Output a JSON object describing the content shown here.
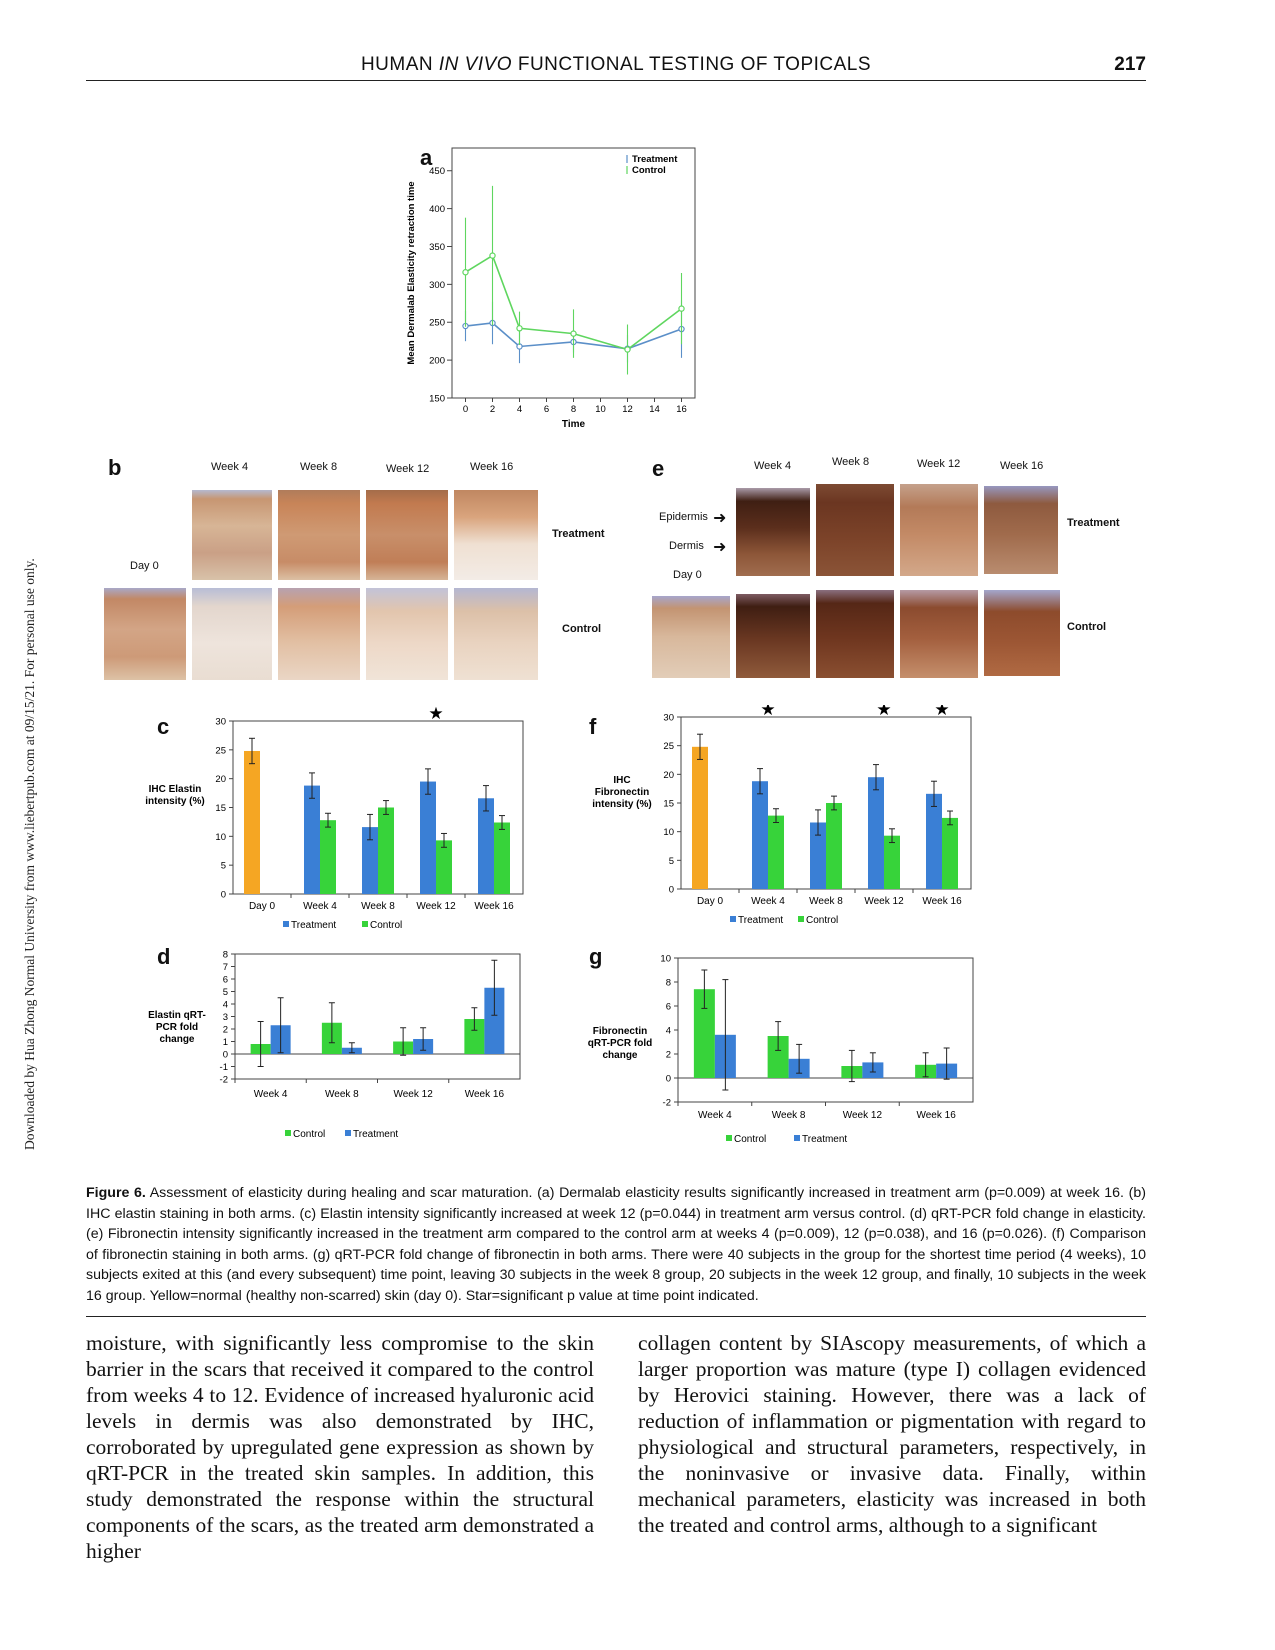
{
  "header": {
    "title": "HUMAN IN VIVO FUNCTIONAL TESTING OF TOPICALS",
    "title_pre": "HUMAN ",
    "title_em": "IN VIVO",
    "title_post": " FUNCTIONAL TESTING OF TOPICALS",
    "page_number": "217"
  },
  "side_note": "Downloaded by Hua Zhong Normal University from www.liebertpub.com at 09/15/21. For personal use only.",
  "colors": {
    "treatment": "#3a7fd5",
    "control": "#37d33a",
    "day0": "#f5a623",
    "line_treatment": "#5b8fc8",
    "line_control": "#5fd65f"
  },
  "panel_a": {
    "letter": "a",
    "ylabel": "Mean Dermalab Elasticity retraction time",
    "xlabel": "Time",
    "legend": [
      "Treatment",
      "Control"
    ]
  },
  "panel_b": {
    "letter": "b",
    "columns": [
      "Week 4",
      "Week 8",
      "Week 12",
      "Week 16"
    ],
    "day0": "Day 0",
    "rows": [
      "Treatment",
      "Control"
    ]
  },
  "panel_e": {
    "letter": "e",
    "columns": [
      "Week 4",
      "Week 8",
      "Week 12",
      "Week 16"
    ],
    "day0": "Day 0",
    "rows": [
      "Treatment",
      "Control"
    ],
    "layer_labels": [
      "Epidermis",
      "Dermis"
    ]
  },
  "panel_c": {
    "letter": "c",
    "ylabel_lines": [
      "IHC Elastin",
      "intensity (%)"
    ],
    "legend": [
      "Treatment",
      "Control"
    ]
  },
  "panel_f": {
    "letter": "f",
    "ylabel_lines": [
      "IHC",
      "Fibronectin",
      "intensity (%)"
    ],
    "legend": [
      "Treatment",
      "Control"
    ]
  },
  "panel_d": {
    "letter": "d",
    "ylabel_lines": [
      "Elastin qRT-",
      "PCR fold",
      "change"
    ],
    "legend": [
      "Control",
      "Treatment"
    ]
  },
  "panel_g": {
    "letter": "g",
    "ylabel_lines": [
      "Fibronectin",
      "qRT-PCR fold",
      "change"
    ],
    "legend": [
      "Control",
      "Treatment"
    ]
  },
  "chart_data": [
    {
      "id": "a",
      "type": "line",
      "title": "",
      "xlabel": "Time",
      "ylabel": "Mean Dermalab Elasticity retraction time",
      "x": [
        0,
        2,
        4,
        8,
        12,
        16
      ],
      "xticks": [
        0,
        2,
        4,
        6,
        8,
        10,
        12,
        14,
        16
      ],
      "yticks": [
        150,
        200,
        250,
        300,
        350,
        400,
        450
      ],
      "xlim": [
        -1,
        17
      ],
      "ylim": [
        150,
        480
      ],
      "legend_position": "top-right",
      "series": [
        {
          "name": "Treatment",
          "values": [
            245,
            249,
            218,
            224,
            215,
            241
          ],
          "error": [
            20,
            28,
            22,
            14,
            18,
            38
          ]
        },
        {
          "name": "Control",
          "values": [
            316,
            338,
            242,
            235,
            214,
            268
          ],
          "error": [
            72,
            92,
            22,
            32,
            33,
            47
          ]
        }
      ]
    },
    {
      "id": "c",
      "type": "bar",
      "categories": [
        "Day 0",
        "Week 4",
        "Week 8",
        "Week 12",
        "Week 16"
      ],
      "ylabel": "IHC Elastin intensity (%)",
      "ylim": [
        0,
        30
      ],
      "yticks": [
        0,
        5,
        10,
        15,
        20,
        25,
        30
      ],
      "day0": {
        "value": 24.8,
        "error": 2.2
      },
      "series": [
        {
          "name": "Treatment",
          "values": [
            null,
            18.8,
            11.6,
            19.5,
            16.6
          ],
          "error": [
            null,
            2.2,
            2.2,
            2.2,
            2.2
          ]
        },
        {
          "name": "Control",
          "values": [
            null,
            12.8,
            15.0,
            9.3,
            12.4
          ],
          "error": [
            null,
            1.2,
            1.2,
            1.2,
            1.2
          ]
        }
      ],
      "significant": [
        "Week 12"
      ]
    },
    {
      "id": "f",
      "type": "bar",
      "categories": [
        "Day 0",
        "Week 4",
        "Week 8",
        "Week 12",
        "Week 16"
      ],
      "ylabel": "IHC Fibronectin intensity (%)",
      "ylim": [
        0,
        30
      ],
      "yticks": [
        0,
        5,
        10,
        15,
        20,
        25,
        30
      ],
      "day0": {
        "value": 24.8,
        "error": 2.2
      },
      "series": [
        {
          "name": "Treatment",
          "values": [
            null,
            18.8,
            11.6,
            19.5,
            16.6
          ],
          "error": [
            null,
            2.2,
            2.2,
            2.2,
            2.2
          ]
        },
        {
          "name": "Control",
          "values": [
            null,
            12.8,
            15.0,
            9.3,
            12.4
          ],
          "error": [
            null,
            1.2,
            1.2,
            1.2,
            1.2
          ]
        }
      ],
      "significant": [
        "Week 4",
        "Week 12",
        "Week 16"
      ]
    },
    {
      "id": "d",
      "type": "bar",
      "categories": [
        "Week 4",
        "Week 8",
        "Week 12",
        "Week 16"
      ],
      "ylabel": "Elastin qRT-PCR fold change",
      "ylim": [
        -2,
        8
      ],
      "yticks": [
        -2,
        -1,
        0,
        1,
        2,
        3,
        4,
        5,
        6,
        7,
        8
      ],
      "series": [
        {
          "name": "Control",
          "values": [
            0.8,
            2.5,
            1.0,
            2.8
          ],
          "error": [
            1.8,
            1.6,
            1.1,
            0.9
          ]
        },
        {
          "name": "Treatment",
          "values": [
            2.3,
            0.5,
            1.2,
            5.3
          ],
          "error": [
            2.2,
            0.4,
            0.9,
            2.2
          ]
        }
      ]
    },
    {
      "id": "g",
      "type": "bar",
      "categories": [
        "Week 4",
        "Week 8",
        "Week 12",
        "Week 16"
      ],
      "ylabel": "Fibronectin qRT-PCR fold change",
      "ylim": [
        -2,
        10
      ],
      "yticks": [
        -2,
        0,
        2,
        4,
        6,
        8,
        10
      ],
      "series": [
        {
          "name": "Control",
          "values": [
            7.4,
            3.5,
            1.0,
            1.1
          ],
          "error": [
            1.6,
            1.2,
            1.3,
            1.0
          ]
        },
        {
          "name": "Treatment",
          "values": [
            3.6,
            1.6,
            1.3,
            1.2
          ],
          "error": [
            4.6,
            1.2,
            0.8,
            1.3
          ]
        }
      ]
    }
  ],
  "caption": {
    "label": "Figure 6.",
    "text": "Assessment of elasticity during healing and scar maturation. (a) Dermalab elasticity results significantly increased in treatment arm (p=0.009) at week 16. (b) IHC elastin staining in both arms. (c) Elastin intensity significantly increased at week 12 (p=0.044) in treatment arm versus control. (d) qRT-PCR fold change in elasticity. (e) Fibronectin intensity significantly increased in the treatment arm compared to the control arm at weeks 4 (p=0.009), 12 (p=0.038), and 16 (p=0.026). (f) Comparison of fibronectin staining in both arms. (g) qRT-PCR fold change of fibronectin in both arms. There were 40 subjects in the group for the shortest time period (4 weeks), 10 subjects exited at this (and every subsequent) time point, leaving 30 subjects in the week 8 group, 20 subjects in the week 12 group, and finally, 10 subjects in the week 16 group. Yellow=normal (healthy non-scarred) skin (day 0). Star=significant p value at time point indicated."
  },
  "body": {
    "left": "moisture, with significantly less compromise to the skin barrier in the scars that received it compared to the control from weeks 4 to 12. Evidence of increased hyaluronic acid levels in dermis was also demonstrated by IHC, corroborated by upregulated gene expression as shown by qRT-PCR in the treated skin samples. In addition, this study demonstrated the response within the structural components of the scars, as the treated arm demonstrated a higher",
    "right": "collagen content by SIAscopy measurements, of which a larger proportion was mature (type I) collagen evidenced by Herovici staining. However, there was a lack of reduction of inflammation or pigmentation with regard to physiological and structural parameters, respectively, in the noninvasive or invasive data. Finally, within mechanical parameters, elasticity was increased in both the treated and control arms, although to a significant"
  }
}
